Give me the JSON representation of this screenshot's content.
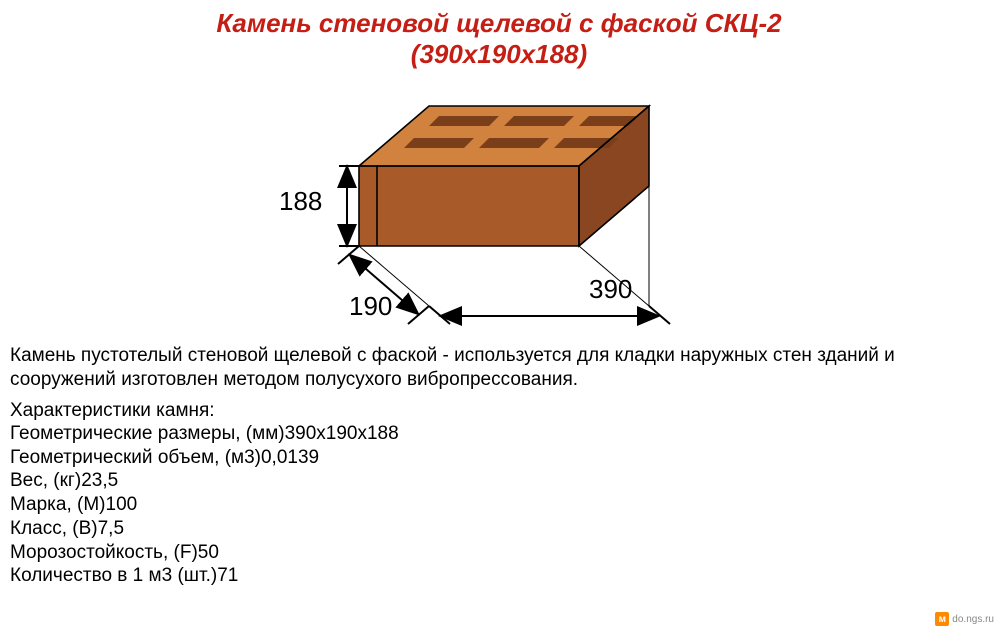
{
  "title": {
    "line1": "Камень стеновой щелевой с фаской СКЦ-2",
    "line2": "(390х190х188)",
    "color": "#c41e15",
    "fontsize": 26
  },
  "diagram": {
    "brick": {
      "top_fill": "#d2823f",
      "front_fill": "#a85a28",
      "side_fill": "#8a4620",
      "slot_fill": "#7a3e1a",
      "outline": "#000000",
      "outline_width": 1.6
    },
    "dims": {
      "height": {
        "value": "188",
        "fontsize": 26
      },
      "width": {
        "value": "190",
        "fontsize": 26
      },
      "length": {
        "value": "390",
        "fontsize": 26
      },
      "arrow_color": "#000000",
      "arrow_width": 2
    }
  },
  "description": {
    "text": "Камень пустотелый стеновой щелевой с фаской - используется для кладки наружных стен зданий и сооружений изготовлен методом полусухого вибропрессования.",
    "fontsize": 19,
    "color": "#000000"
  },
  "specs": {
    "title": "Характеристики камня:",
    "fontsize": 19,
    "rows": [
      {
        "label": "Геометрические размеры, (мм)",
        "value": "390х190х188"
      },
      {
        "label": "Геометрический объем, (м3)",
        "value": "0,0139"
      },
      {
        "label": "Вес, (кг)",
        "value": "23,5"
      },
      {
        "label": "Марка, (М)",
        "value": "100"
      },
      {
        "label": "Класс, (В)",
        "value": "7,5"
      },
      {
        "label": "Морозостойкость, (F)",
        "value": "50"
      },
      {
        "label": "Количество в 1 м3 (шт.)",
        "value": "71"
      }
    ]
  },
  "watermark": {
    "badge": "м",
    "text": "do.ngs.ru"
  }
}
